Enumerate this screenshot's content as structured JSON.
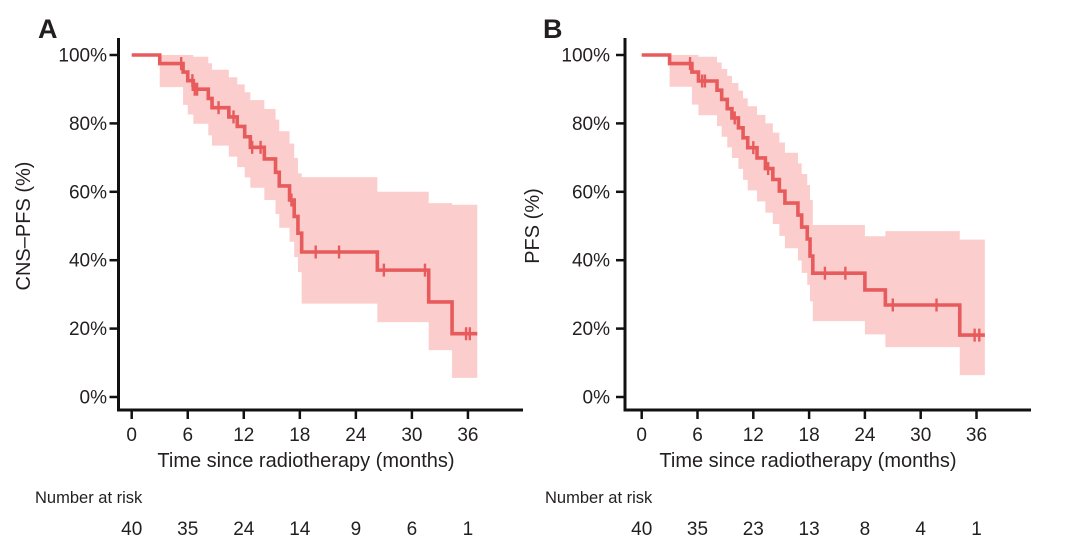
{
  "figure": {
    "curve_color": "#e85b5c",
    "band_color": "#fbcdcd",
    "text_color": "#231f20",
    "axis_color": "#111111",
    "background": "#ffffff"
  },
  "chart_data": [
    {
      "type": "line",
      "subtype": "kaplan-meier-step",
      "panel_label": "A",
      "xlabel": "Time since radiotherapy (months)",
      "ylabel": "CNS–PFS (%)",
      "x_ticks": [
        0,
        6,
        12,
        18,
        24,
        30,
        36
      ],
      "y_tick_values": [
        100,
        80,
        60,
        40,
        20,
        0
      ],
      "y_tick_labels": [
        "100%",
        "80%",
        "60%",
        "40%",
        "20%",
        "0%"
      ],
      "xlim": [
        0,
        42
      ],
      "ylim": [
        0,
        100
      ],
      "grid": false,
      "legend": null,
      "km_steps": [
        [
          0,
          100,
          100,
          100
        ],
        [
          3,
          97.5,
          90.6,
          100
        ],
        [
          5.5,
          95,
          85.4,
          100
        ],
        [
          6,
          92.5,
          82.6,
          100
        ],
        [
          6.6,
          90,
          79.9,
          99.5
        ],
        [
          8.2,
          87.3,
          76.5,
          97.6
        ],
        [
          8.6,
          84.6,
          73.5,
          95.7
        ],
        [
          10.4,
          81.9,
          70.3,
          93.5
        ],
        [
          11.3,
          79.1,
          67.2,
          91.4
        ],
        [
          12.1,
          76.1,
          64.2,
          89.1
        ],
        [
          12.7,
          73,
          61.2,
          86.8
        ],
        [
          14.2,
          69.6,
          57.6,
          84.2
        ],
        [
          15.4,
          65.7,
          53.5,
          81.1
        ],
        [
          15.8,
          61.7,
          49.5,
          77.7
        ],
        [
          16.9,
          57.6,
          45.4,
          74.1
        ],
        [
          17.4,
          52.8,
          40.9,
          69.9
        ],
        [
          17.8,
          47.9,
          36.5,
          65.4
        ],
        [
          18.2,
          42.4,
          27.3,
          64.3
        ],
        [
          26.3,
          37.1,
          21.9,
          60
        ],
        [
          31.8,
          27.8,
          13.7,
          56.7
        ],
        [
          34.3,
          18.5,
          5.6,
          56.2
        ]
      ],
      "end_time": 37,
      "censor_times": [
        5.3,
        6.5,
        6.75,
        7.0,
        9.3,
        10.9,
        12.9,
        13.8,
        17.1,
        19.7,
        22.2,
        27.0,
        31.4,
        35.8,
        36.2
      ],
      "number_at_risk": {
        "label": "Number at risk",
        "times": [
          0,
          6,
          12,
          18,
          24,
          30,
          36
        ],
        "counts": [
          40,
          35,
          24,
          14,
          9,
          6,
          1
        ]
      }
    },
    {
      "type": "line",
      "subtype": "kaplan-meier-step",
      "panel_label": "B",
      "xlabel": "Time since radiotherapy (months)",
      "ylabel": "PFS (%)",
      "x_ticks": [
        0,
        6,
        12,
        18,
        24,
        30,
        36
      ],
      "y_tick_values": [
        100,
        80,
        60,
        40,
        20,
        0
      ],
      "y_tick_labels": [
        "100%",
        "80%",
        "60%",
        "40%",
        "20%",
        "0%"
      ],
      "xlim": [
        0,
        42
      ],
      "ylim": [
        0,
        100
      ],
      "grid": false,
      "legend": null,
      "km_steps": [
        [
          0,
          100,
          100,
          100
        ],
        [
          3,
          97.5,
          90.7,
          100
        ],
        [
          5.4,
          95,
          85.5,
          100
        ],
        [
          6.1,
          92.4,
          82.4,
          99.5
        ],
        [
          8.1,
          89.7,
          79.2,
          97.8
        ],
        [
          8.6,
          87,
          76.1,
          95.9
        ],
        [
          9.2,
          84.3,
          73,
          93.9
        ],
        [
          9.7,
          81.6,
          69.9,
          91.8
        ],
        [
          10.4,
          78.7,
          66.7,
          89.6
        ],
        [
          10.9,
          75.8,
          63.5,
          87.3
        ],
        [
          11.4,
          72.9,
          60.4,
          85
        ],
        [
          12.4,
          69.9,
          57.2,
          82.5
        ],
        [
          13.3,
          66.8,
          53.9,
          80
        ],
        [
          14.1,
          63.6,
          50.6,
          77.3
        ],
        [
          14.8,
          60.2,
          47.1,
          74.4
        ],
        [
          15.4,
          56.7,
          43.5,
          71.4
        ],
        [
          16.8,
          53.2,
          39.9,
          68.3
        ],
        [
          17.2,
          49.7,
          36.3,
          65.2
        ],
        [
          17.8,
          46.2,
          32.8,
          62
        ],
        [
          18.1,
          41.2,
          28,
          57.6
        ],
        [
          18.4,
          36.2,
          22.2,
          50.3
        ],
        [
          24,
          31.3,
          18.3,
          47
        ],
        [
          26.2,
          26.9,
          14.6,
          48.5
        ],
        [
          34.2,
          18.1,
          6.4,
          46
        ]
      ],
      "end_time": 36.9,
      "censor_times": [
        5.2,
        6.5,
        6.8,
        10.0,
        12.0,
        13.6,
        19.7,
        21.9,
        27.0,
        31.7,
        35.8,
        36.3
      ],
      "number_at_risk": {
        "label": "Number at risk",
        "times": [
          0,
          6,
          12,
          18,
          24,
          30,
          36
        ],
        "counts": [
          40,
          35,
          23,
          13,
          8,
          4,
          1
        ]
      }
    }
  ]
}
